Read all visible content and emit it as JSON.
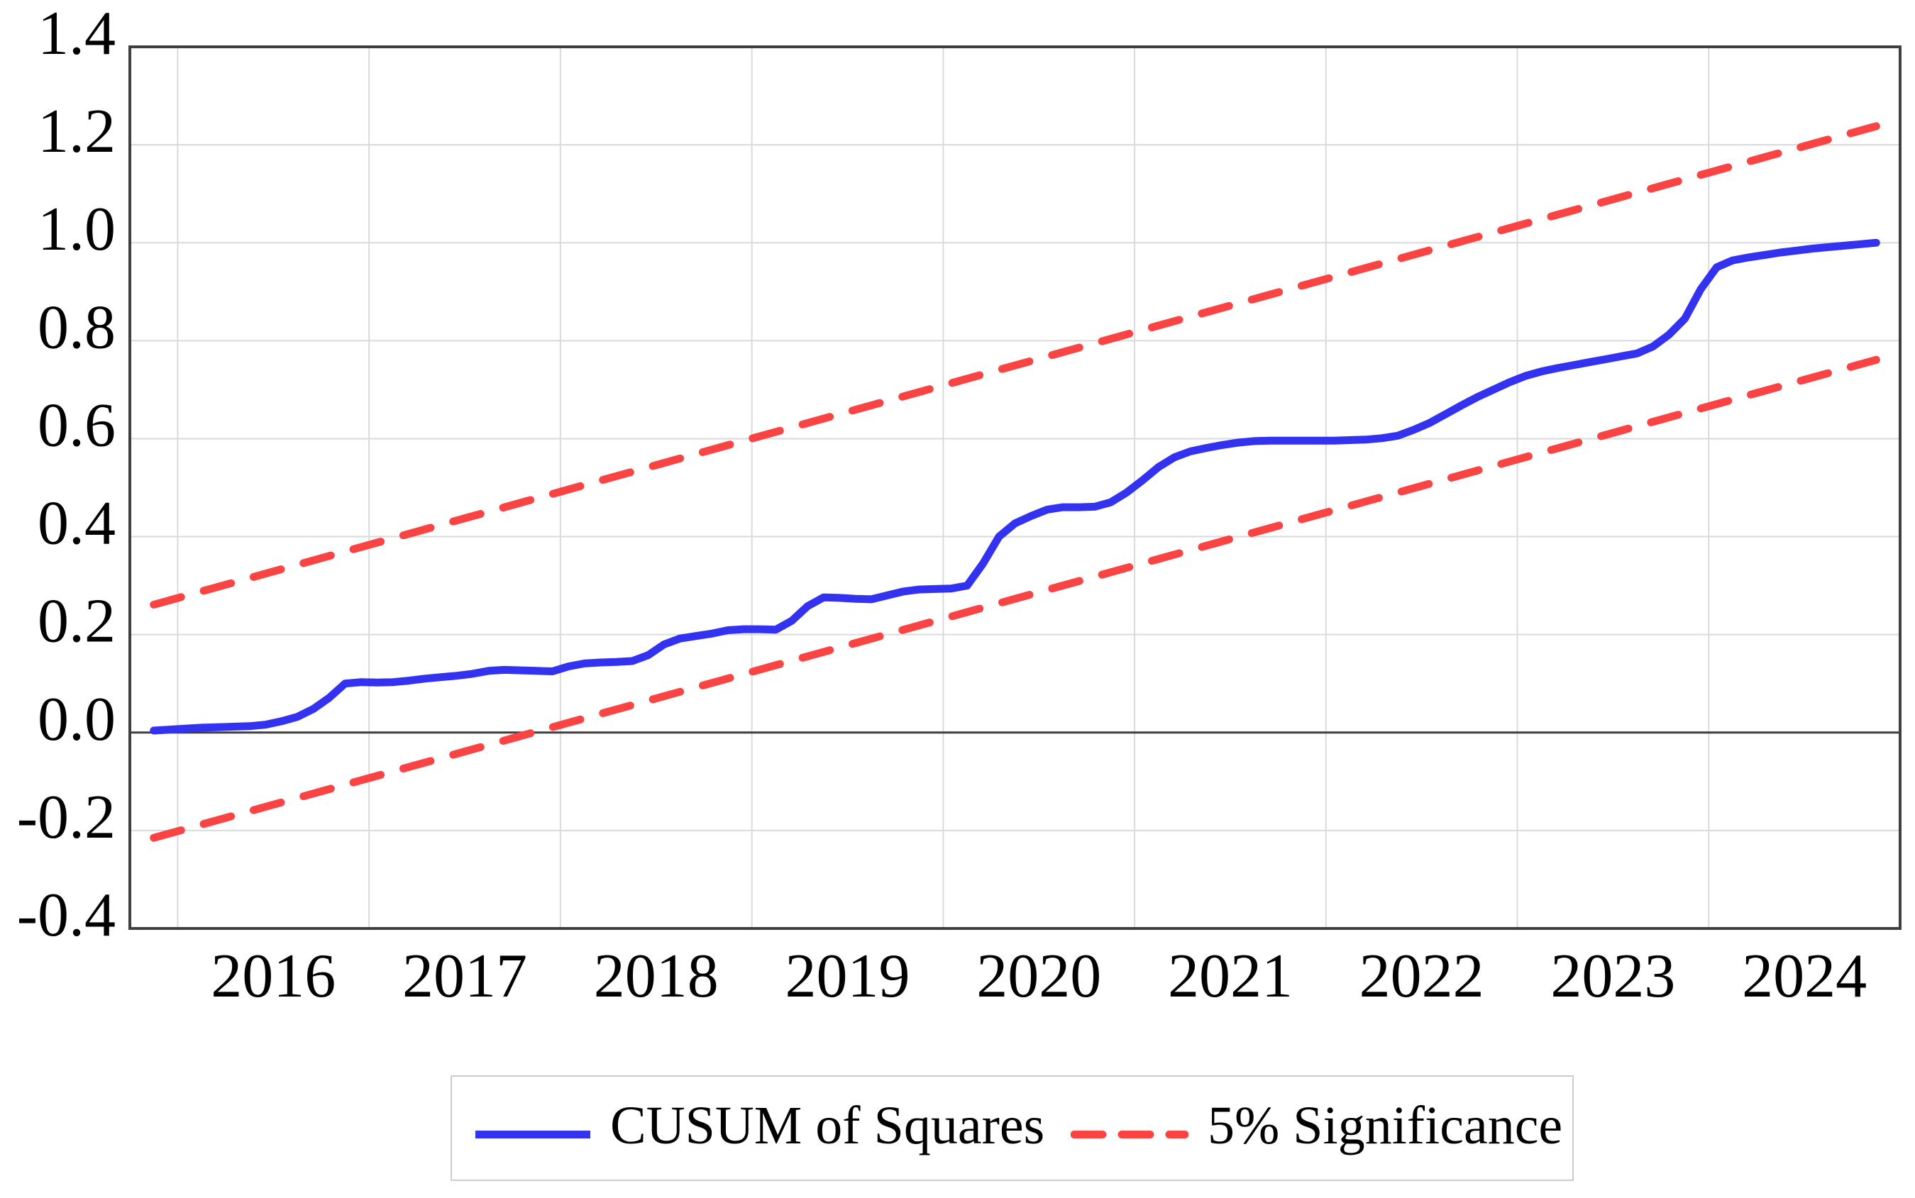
{
  "figure": {
    "background": "#ffffff"
  },
  "chart_data": {
    "type": "line",
    "title": "",
    "xlabel": "",
    "ylabel": "",
    "x_axis": {
      "min": 2015.75,
      "max": 2025.0,
      "gridline_years": [
        2016,
        2017,
        2018,
        2019,
        2020,
        2021,
        2022,
        2023,
        2024
      ],
      "tick_positions": [
        2016.5,
        2017.5,
        2018.5,
        2019.5,
        2020.5,
        2021.5,
        2022.5,
        2023.5,
        2024.5
      ],
      "tick_labels": [
        "2016",
        "2017",
        "2018",
        "2019",
        "2020",
        "2021",
        "2022",
        "2023",
        "2024"
      ]
    },
    "y_axis": {
      "min": -0.4,
      "max": 1.4,
      "tick_values": [
        1.4,
        1.2,
        1.0,
        0.8,
        0.6,
        0.4,
        0.2,
        0.0,
        -0.2,
        -0.4
      ],
      "tick_labels": [
        "1.4",
        "1.2",
        "1.0",
        "0.8",
        "0.6",
        "0.4",
        "0.2",
        "0.0",
        "-0.2",
        "-0.4"
      ],
      "gridline_values": [
        1.2,
        1.0,
        0.8,
        0.6,
        0.4,
        0.2,
        -0.2
      ],
      "zero_line": 0.0
    },
    "grid": true,
    "legend_position": "bottom-center",
    "series": [
      {
        "name": "CUSUM of Squares",
        "style": "solid",
        "color": "#3232f0",
        "x_start": 2015.875,
        "x_step": 0.0833333,
        "values": [
          0.004,
          0.006,
          0.008,
          0.01,
          0.011,
          0.012,
          0.013,
          0.016,
          0.023,
          0.032,
          0.048,
          0.071,
          0.1,
          0.103,
          0.102,
          0.103,
          0.106,
          0.11,
          0.113,
          0.116,
          0.12,
          0.126,
          0.128,
          0.127,
          0.126,
          0.125,
          0.135,
          0.141,
          0.143,
          0.144,
          0.146,
          0.158,
          0.18,
          0.192,
          0.197,
          0.202,
          0.209,
          0.211,
          0.211,
          0.21,
          0.228,
          0.258,
          0.276,
          0.275,
          0.273,
          0.272,
          0.28,
          0.288,
          0.292,
          0.293,
          0.294,
          0.3,
          0.345,
          0.4,
          0.427,
          0.442,
          0.455,
          0.46,
          0.46,
          0.461,
          0.47,
          0.49,
          0.515,
          0.542,
          0.562,
          0.574,
          0.581,
          0.587,
          0.592,
          0.595,
          0.596,
          0.596,
          0.596,
          0.596,
          0.596,
          0.597,
          0.598,
          0.601,
          0.606,
          0.618,
          0.632,
          0.65,
          0.668,
          0.685,
          0.7,
          0.715,
          0.728,
          0.737,
          0.744,
          0.75,
          0.756,
          0.762,
          0.768,
          0.774,
          0.788,
          0.812,
          0.845,
          0.905,
          0.95,
          0.964,
          0.97,
          0.975,
          0.98,
          0.984,
          0.988,
          0.991,
          0.994,
          0.997,
          1.0
        ]
      },
      {
        "name": "5% Significance (upper bound)",
        "style": "dashed",
        "color": "#fa4343",
        "x": [
          2015.875,
          2024.875
        ],
        "y": [
          0.261,
          1.238
        ]
      },
      {
        "name": "5% Significance (lower bound)",
        "style": "dashed",
        "color": "#fa4343",
        "x": [
          2015.875,
          2024.875
        ],
        "y": [
          -0.215,
          0.761
        ]
      }
    ],
    "legend": {
      "entries": [
        {
          "label": "CUSUM of Squares",
          "style": "solid",
          "color": "#3232f0"
        },
        {
          "label": "5% Significance",
          "style": "dashed",
          "color": "#fa4343"
        }
      ]
    }
  },
  "colors": {
    "cusum_line": "#3232f0",
    "significance_line": "#fa4343",
    "plot_border": "#3f3f3f",
    "zero_line": "#3f3f3f",
    "gridline": "#dadada",
    "text": "#000000",
    "legend_border": "#cccccc"
  }
}
